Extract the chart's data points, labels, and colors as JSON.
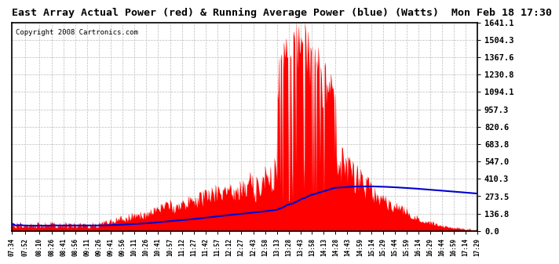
{
  "title": "East Array Actual Power (red) & Running Average Power (blue) (Watts)  Mon Feb 18 17:30",
  "copyright": "Copyright 2008 Cartronics.com",
  "ytick_labels": [
    "0.0",
    "136.8",
    "273.5",
    "410.3",
    "547.0",
    "683.8",
    "820.6",
    "957.3",
    "1094.1",
    "1230.8",
    "1367.6",
    "1504.3",
    "1641.1"
  ],
  "ytick_values": [
    0.0,
    136.8,
    273.5,
    410.3,
    547.0,
    683.8,
    820.6,
    957.3,
    1094.1,
    1230.8,
    1367.6,
    1504.3,
    1641.1
  ],
  "ymax": 1641.1,
  "background_color": "#ffffff",
  "grid_color": "#bbbbbb",
  "bar_color": "#ff0000",
  "line_color": "#0000cc",
  "title_fontsize": 9.5,
  "copyright_fontsize": 6.5,
  "xtick_fontsize": 5.5,
  "ytick_fontsize": 7.5,
  "xtick_labels": [
    "07:34",
    "07:52",
    "08:10",
    "08:26",
    "08:41",
    "08:56",
    "09:11",
    "09:26",
    "09:41",
    "09:56",
    "10:11",
    "10:26",
    "10:41",
    "10:57",
    "11:12",
    "11:27",
    "11:42",
    "11:57",
    "12:12",
    "12:27",
    "12:43",
    "12:58",
    "13:13",
    "13:28",
    "13:43",
    "13:58",
    "14:13",
    "14:28",
    "14:43",
    "14:59",
    "15:14",
    "15:29",
    "15:44",
    "15:59",
    "16:14",
    "16:29",
    "16:44",
    "16:59",
    "17:14",
    "17:29"
  ]
}
